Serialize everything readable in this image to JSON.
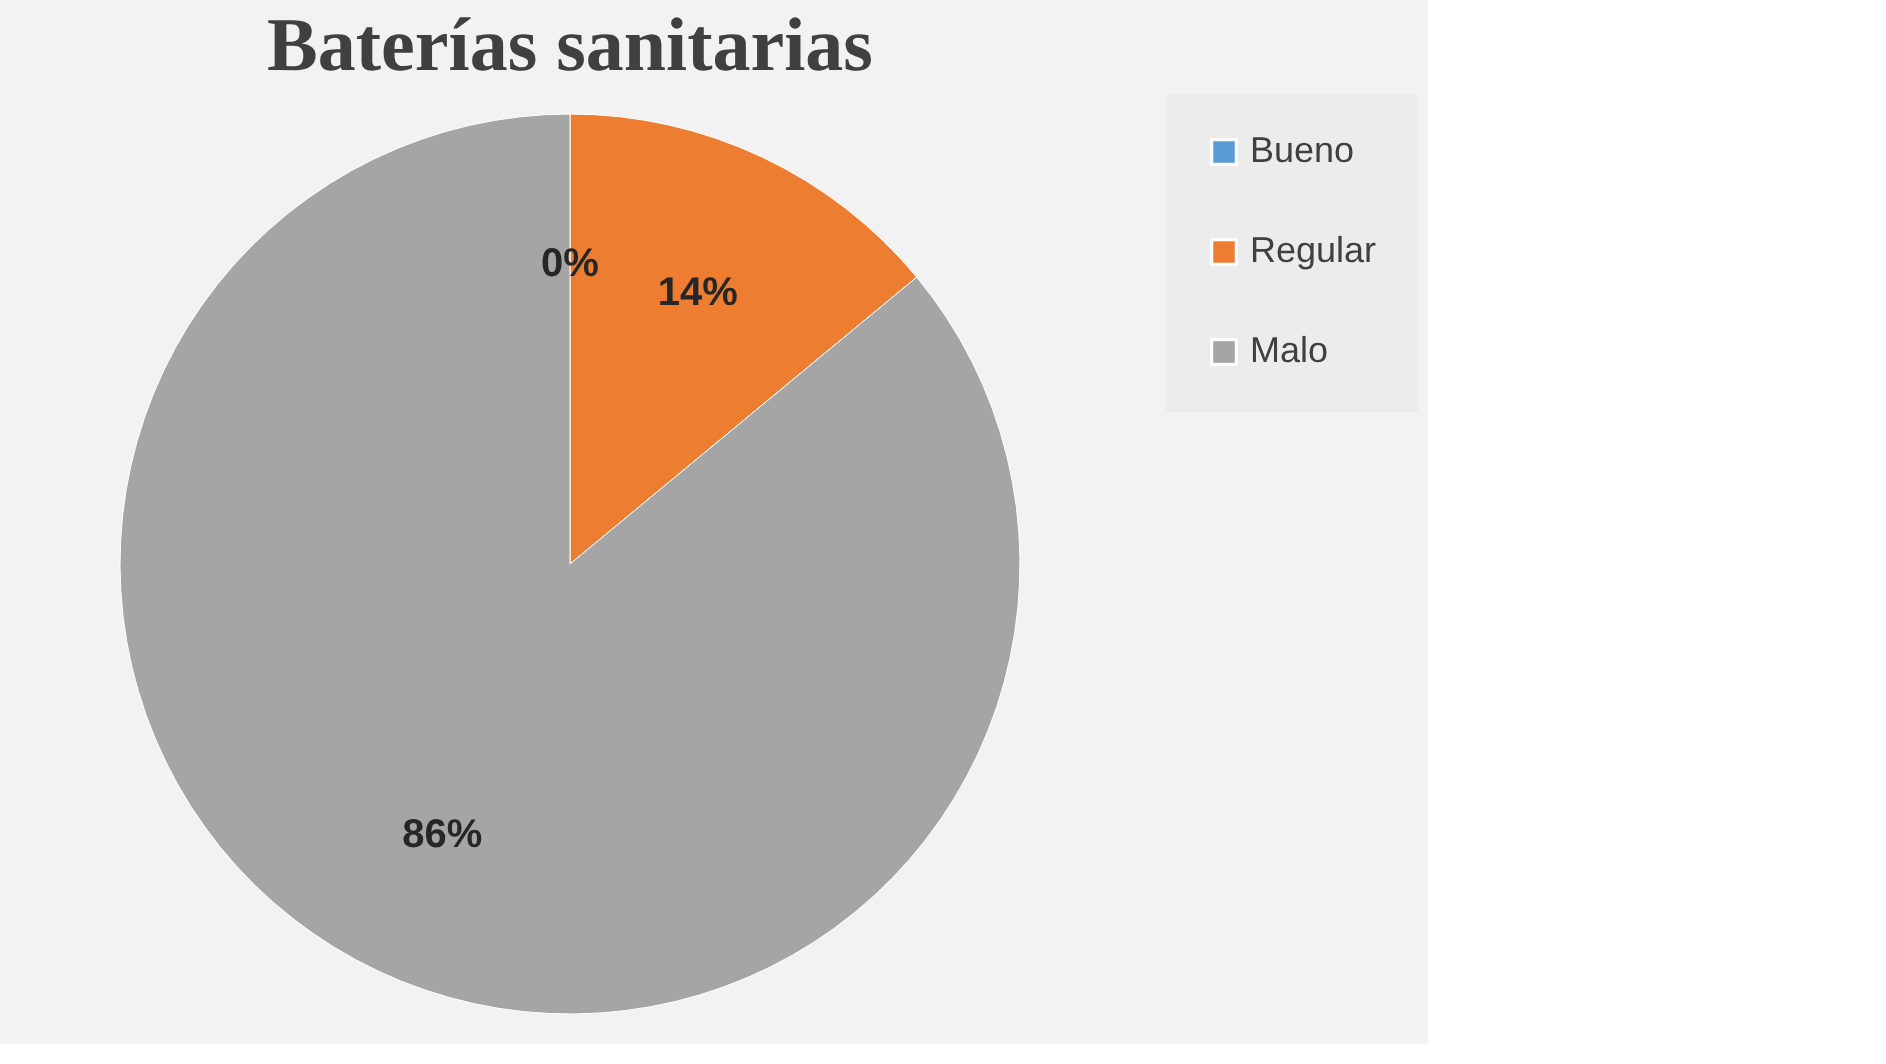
{
  "chart_data": {
    "type": "pie",
    "title": "Baterías sanitarias",
    "categories": [
      "Bueno",
      "Regular",
      "Malo"
    ],
    "values": [
      0,
      14,
      86
    ],
    "colors": [
      "#5b9bd5",
      "#ed7d31",
      "#a5a5a5"
    ],
    "value_labels": [
      "0%",
      "14%",
      "86%"
    ],
    "legend": "right"
  }
}
